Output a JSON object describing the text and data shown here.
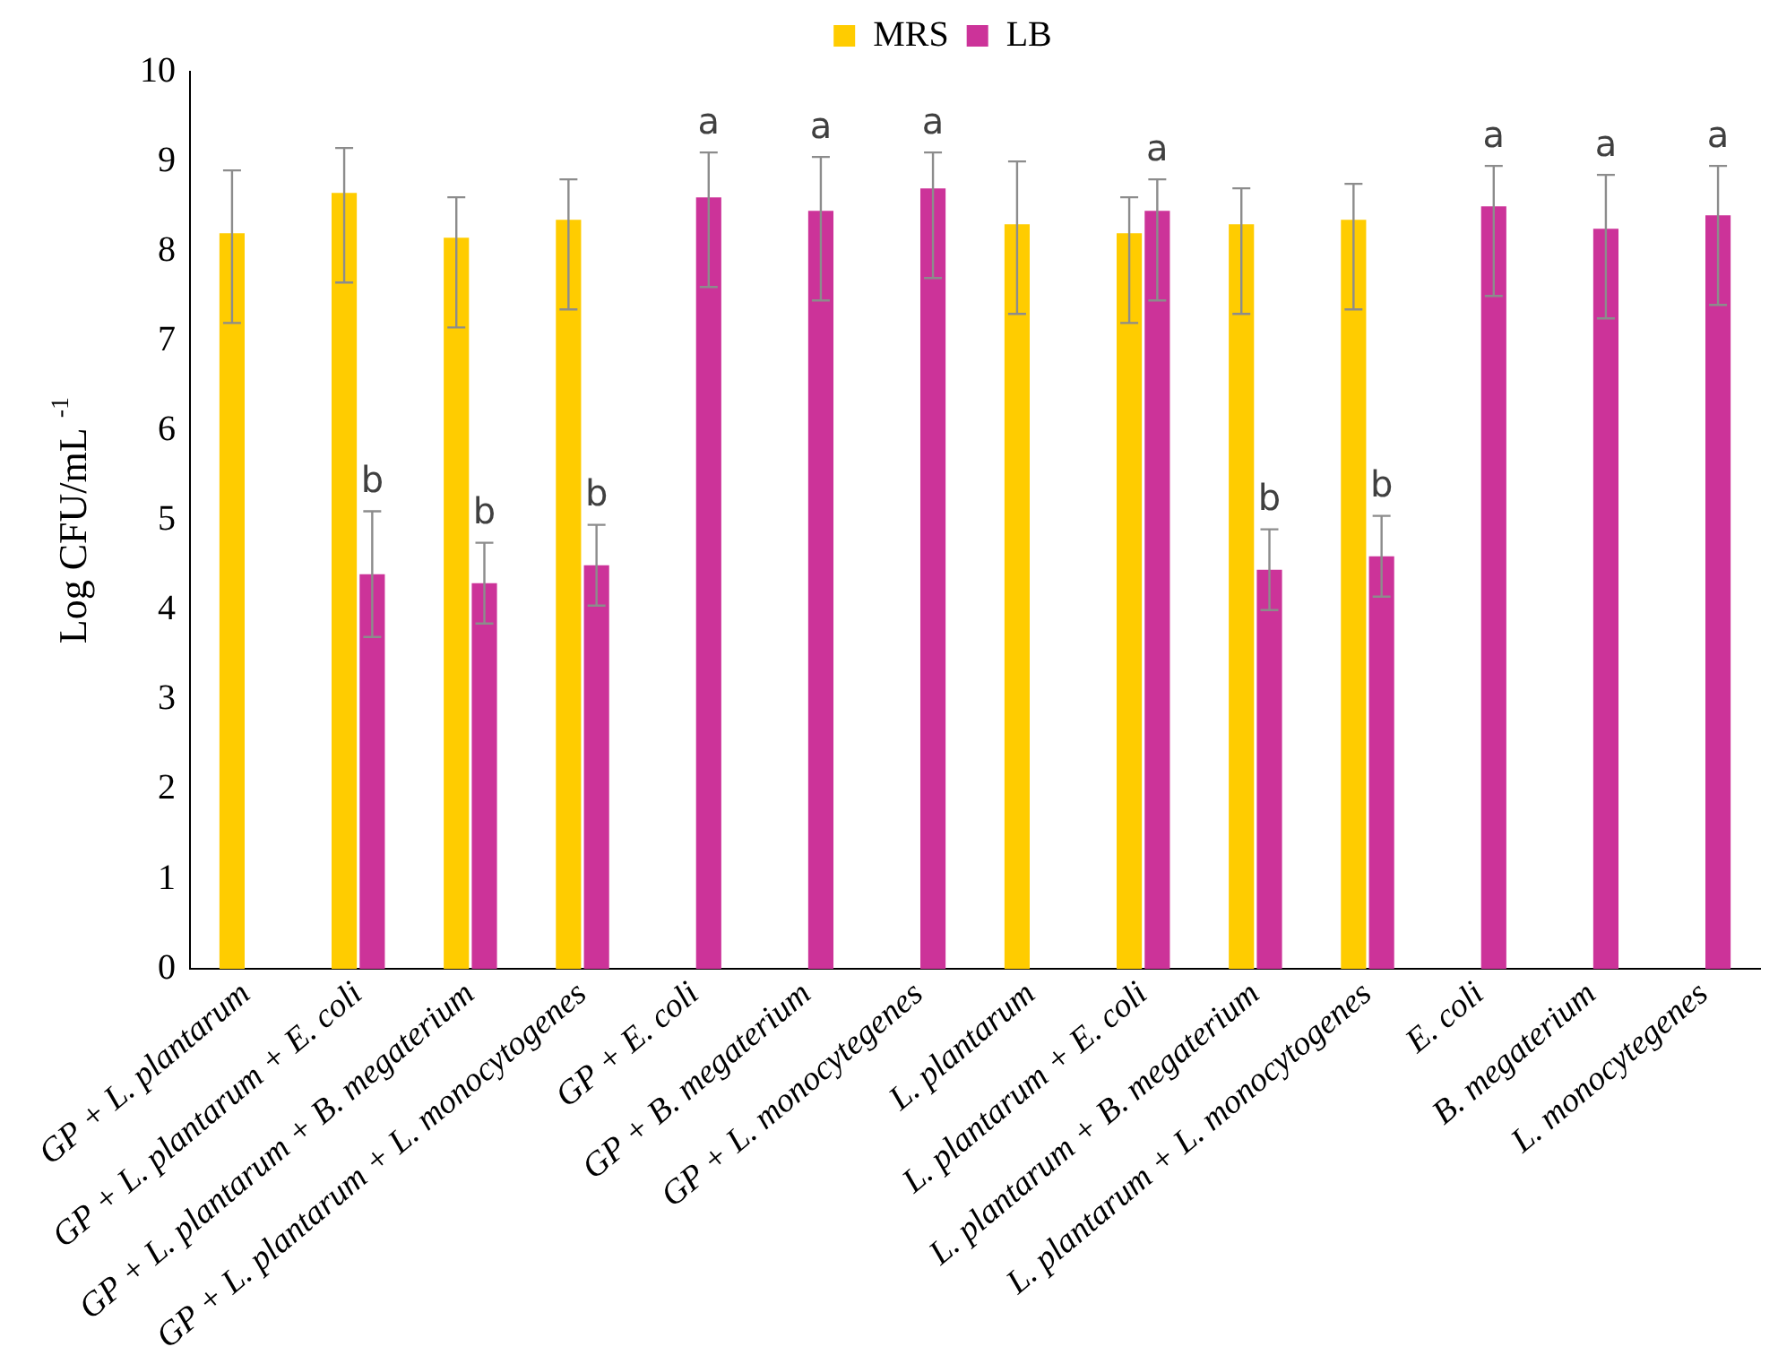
{
  "chart_data": {
    "type": "bar",
    "ylabel": "Log CFU/mL $^{-1}$",
    "categories": [
      "GP + L. plantarum",
      "GP + L. plantarum + E. coli",
      "GP + L. plantarum + B. megaterium",
      "GP + L. plantarum + L. monocytogenes",
      "GP + E. coli",
      "GP + B. megaterium",
      "GP + L. monocytegenes",
      "L. plantarum",
      "L. plantarum + E. coli",
      "L. plantarum + B. megaterium",
      "L. plantarum + L. monocytogenes",
      "E. coli",
      "B. megaterium",
      "L. monocytegenes"
    ],
    "series": [
      {
        "name": "MRS",
        "color": "#ffcc00",
        "values": [
          8.2,
          8.65,
          8.15,
          8.35,
          null,
          null,
          null,
          8.3,
          8.2,
          8.3,
          8.35,
          null,
          null,
          null
        ],
        "errors": [
          [
            7.2,
            8.9
          ],
          [
            7.65,
            9.15
          ],
          [
            7.15,
            8.6
          ],
          [
            7.35,
            8.8
          ],
          null,
          null,
          null,
          [
            7.3,
            9.0
          ],
          [
            7.2,
            8.6
          ],
          [
            7.3,
            8.7
          ],
          [
            7.35,
            8.75
          ],
          null,
          null,
          null
        ]
      },
      {
        "name": "LB",
        "color": "#cc3399",
        "values": [
          null,
          4.4,
          4.3,
          4.5,
          8.6,
          8.45,
          8.7,
          null,
          8.45,
          4.45,
          4.6,
          8.5,
          8.25,
          8.4
        ],
        "errors": [
          null,
          0.7,
          0.45,
          0.45,
          [
            7.6,
            9.1
          ],
          [
            7.45,
            9.05
          ],
          [
            7.7,
            9.1
          ],
          null,
          [
            7.45,
            8.8
          ],
          0.45,
          0.45,
          [
            7.5,
            8.95
          ],
          [
            7.25,
            8.85
          ],
          [
            7.4,
            8.95
          ]
        ]
      }
    ],
    "annotations": [
      {
        "text": "b",
        "x": "GP + L. plantarum + E. coli",
        "y": 4.4
      },
      {
        "text": "b",
        "x": "GP + L. plantarum + B. megaterium",
        "y": 4.3
      },
      {
        "text": "b",
        "x": "GP + L. plantarum + L. monocytogenes",
        "y": 4.5
      },
      {
        "text": "a",
        "x": "GP + E. coli",
        "y": 8.6
      },
      {
        "text": "a",
        "x": "GP + B. megaterium",
        "y": 8.45
      },
      {
        "text": "a",
        "x": "GP + L. monocytegenes",
        "y": 8.7
      },
      {
        "text": "a",
        "x": "L. plantarum + E. coli",
        "y": 8.45
      },
      {
        "text": "b",
        "x": "L. plantarum + B. megaterium",
        "y": 4.45
      },
      {
        "text": "b",
        "x": "L. plantarum + L. monocytogenes",
        "y": 4.6
      },
      {
        "text": "a",
        "x": "E. coli",
        "y": 8.5
      },
      {
        "text": "a",
        "x": "B. megaterium",
        "y": 8.25
      },
      {
        "text": "a",
        "x": "L. monocytegenes",
        "y": 8.4
      }
    ],
    "ylim": [
      0,
      10
    ],
    "yticks": [
      0,
      1,
      2,
      3,
      4,
      5,
      6,
      7,
      8,
      9,
      10
    ],
    "grid": false,
    "legend": "top"
  }
}
